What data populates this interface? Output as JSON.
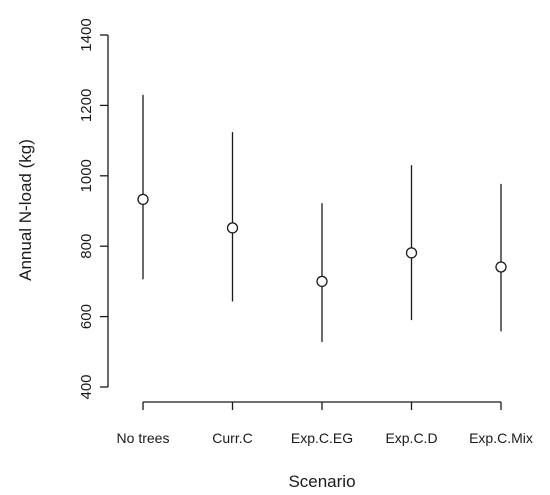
{
  "chart_data": {
    "type": "scatter",
    "subtype": "point-with-error-bars",
    "title": "",
    "xlabel": "Scenario",
    "ylabel": "Annual N-load (kg)",
    "categories": [
      "No trees",
      "Curr.C",
      "Exp.C.EG",
      "Exp.C.D",
      "Exp.C.Mix"
    ],
    "series": [
      {
        "values": [
          933,
          852,
          700,
          781,
          741
        ],
        "lower": [
          706,
          643,
          528,
          590,
          558
        ],
        "upper": [
          1230,
          1124,
          922,
          1030,
          977
        ]
      }
    ],
    "ylim": [
      400,
      1400
    ],
    "yticks": [
      400,
      600,
      800,
      1000,
      1200,
      1400
    ],
    "grid": false,
    "legend": "none"
  }
}
